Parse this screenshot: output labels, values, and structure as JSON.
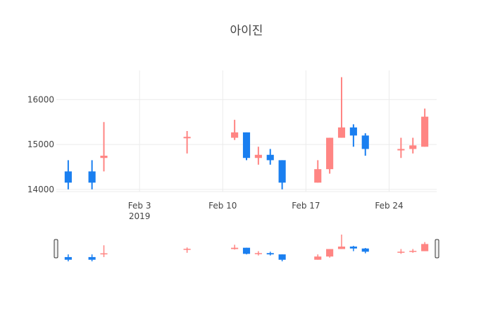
{
  "chart_data": {
    "type": "candlestick",
    "title": "아이진",
    "xlabel": "",
    "ylabel": "",
    "xlim": [
      "2019-01-27",
      "2019-02-28"
    ],
    "ylim": [
      13950,
      16650
    ],
    "grid": true,
    "legend": "none",
    "x_ticks": [
      {
        "date": "2019-02-03",
        "label": "Feb 3",
        "sublabel": "2019"
      },
      {
        "date": "2019-02-10",
        "label": "Feb 10",
        "sublabel": ""
      },
      {
        "date": "2019-02-17",
        "label": "Feb 17",
        "sublabel": ""
      },
      {
        "date": "2019-02-24",
        "label": "Feb 24",
        "sublabel": ""
      }
    ],
    "y_ticks": [
      14000,
      15000,
      16000
    ],
    "increasing_color": "#ff8583",
    "decreasing_color": "#1a7ff0",
    "candles": [
      {
        "date": "2019-01-28",
        "open": 14400,
        "high": 14650,
        "low": 14000,
        "close": 14150
      },
      {
        "date": "2019-01-30",
        "open": 14400,
        "high": 14650,
        "low": 14000,
        "close": 14150
      },
      {
        "date": "2019-01-31",
        "open": 14700,
        "high": 15500,
        "low": 14400,
        "close": 14750
      },
      {
        "date": "2019-02-07",
        "open": 15150,
        "high": 15300,
        "low": 14800,
        "close": 15170
      },
      {
        "date": "2019-02-11",
        "open": 15150,
        "high": 15550,
        "low": 15100,
        "close": 15270
      },
      {
        "date": "2019-02-12",
        "open": 15270,
        "high": 15270,
        "low": 14650,
        "close": 14700
      },
      {
        "date": "2019-02-13",
        "open": 14700,
        "high": 14950,
        "low": 14550,
        "close": 14770
      },
      {
        "date": "2019-02-14",
        "open": 14770,
        "high": 14900,
        "low": 14550,
        "close": 14650
      },
      {
        "date": "2019-02-15",
        "open": 14650,
        "high": 14650,
        "low": 14000,
        "close": 14150
      },
      {
        "date": "2019-02-18",
        "open": 14150,
        "high": 14650,
        "low": 14150,
        "close": 14450
      },
      {
        "date": "2019-02-19",
        "open": 14450,
        "high": 15150,
        "low": 14350,
        "close": 15150
      },
      {
        "date": "2019-02-20",
        "open": 15150,
        "high": 16500,
        "low": 15150,
        "close": 15380
      },
      {
        "date": "2019-02-21",
        "open": 15380,
        "high": 15450,
        "low": 14950,
        "close": 15200
      },
      {
        "date": "2019-02-22",
        "open": 15200,
        "high": 15250,
        "low": 14750,
        "close": 14900
      },
      {
        "date": "2019-02-25",
        "open": 14900,
        "high": 15150,
        "low": 14700,
        "close": 14900
      },
      {
        "date": "2019-02-26",
        "open": 14900,
        "high": 15150,
        "low": 14800,
        "close": 14980
      },
      {
        "date": "2019-02-27",
        "open": 14950,
        "high": 15800,
        "low": 14950,
        "close": 15620
      }
    ],
    "range_slider": true
  }
}
